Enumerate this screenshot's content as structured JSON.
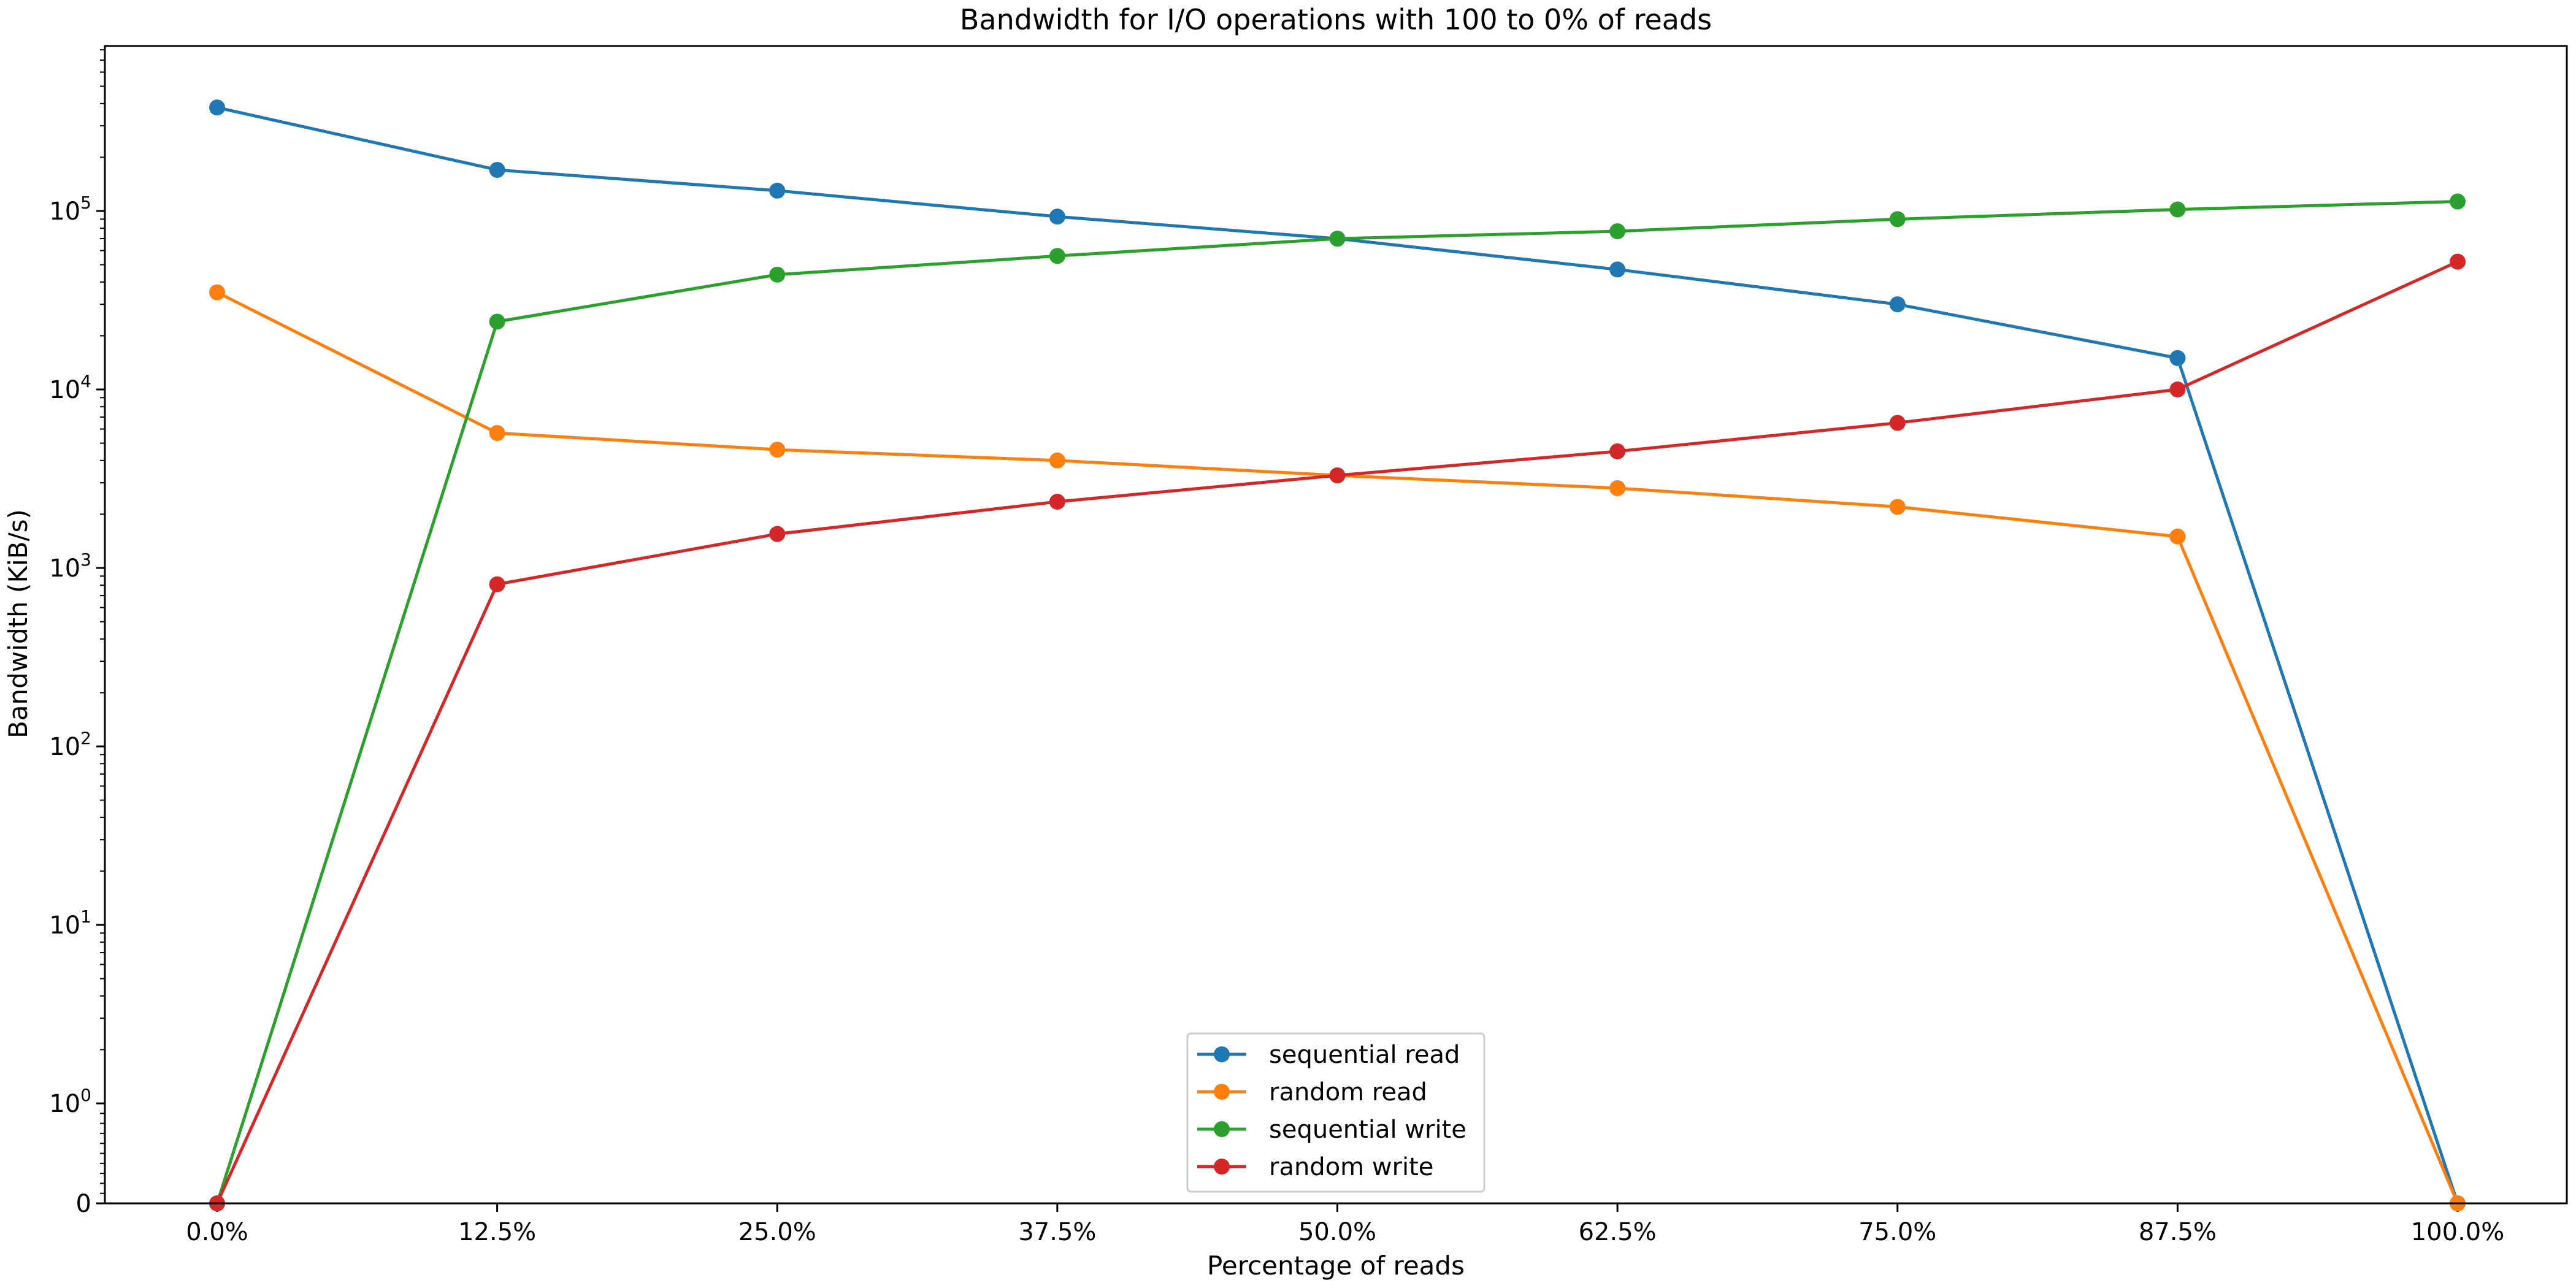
{
  "chart_data": {
    "type": "line",
    "title": "Bandwidth for I/O operations with 100 to 0% of reads",
    "xlabel": "Percentage of reads",
    "ylabel": "Bandwidth (KiB/s)",
    "x_scale": "category",
    "y_scale": "symlog",
    "y_ticks": [
      0,
      1,
      10,
      100,
      1000,
      10000,
      100000
    ],
    "y_tick_labels": [
      {
        "base": "0",
        "exp": ""
      },
      {
        "base": "10",
        "exp": "0"
      },
      {
        "base": "10",
        "exp": "1"
      },
      {
        "base": "10",
        "exp": "2"
      },
      {
        "base": "10",
        "exp": "3"
      },
      {
        "base": "10",
        "exp": "4"
      },
      {
        "base": "10",
        "exp": "5"
      }
    ],
    "categories": [
      "0.0%",
      "12.5%",
      "25.0%",
      "37.5%",
      "50.0%",
      "62.5%",
      "75.0%",
      "87.5%",
      "100.0%"
    ],
    "grid": false,
    "legend_position": "bottom-center",
    "series": [
      {
        "name": "sequential read",
        "color": "#1f77b4",
        "values": [
          380000,
          170000,
          130000,
          93000,
          70000,
          47000,
          30000,
          15000,
          0
        ]
      },
      {
        "name": "random read",
        "color": "#ff7f0e",
        "values": [
          35000,
          5700,
          4600,
          4000,
          3300,
          2800,
          2200,
          1500,
          0
        ]
      },
      {
        "name": "sequential write",
        "color": "#2ca02c",
        "values": [
          0,
          24000,
          44000,
          56000,
          70000,
          77000,
          90000,
          102000,
          113000
        ]
      },
      {
        "name": "random write",
        "color": "#d62728",
        "values": [
          0,
          810,
          1550,
          2350,
          3300,
          4500,
          6500,
          10000,
          52000
        ]
      }
    ]
  }
}
